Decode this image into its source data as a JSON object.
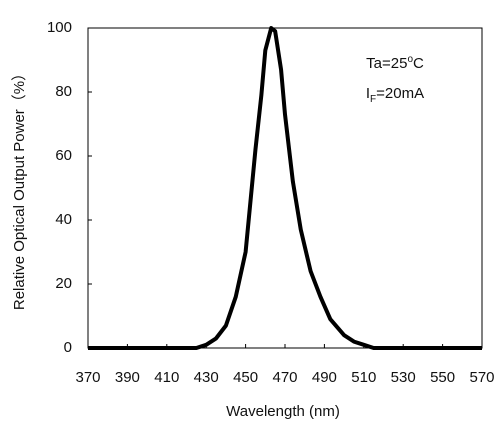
{
  "chart_data": {
    "type": "line",
    "y_label": "Relative Optical Output Power（%）",
    "x_label": "Wavelength  (nm)",
    "annotations": [
      [
        "Ta=25",
        "o",
        "C"
      ],
      [
        "I",
        "F",
        "=20mA"
      ]
    ],
    "x": [
      370,
      420,
      425,
      430,
      435,
      440,
      445,
      450,
      455,
      458,
      460,
      463,
      465,
      468,
      470,
      474,
      478,
      483,
      488,
      493,
      500,
      505,
      510,
      515,
      570
    ],
    "series": [
      {
        "color": "#000000",
        "values": [
          0,
          0,
          0,
          1,
          3,
          7,
          16,
          30,
          62,
          79,
          93,
          100,
          99,
          87,
          73,
          52,
          37,
          24,
          16,
          9,
          4,
          2,
          1,
          0,
          0
        ]
      }
    ],
    "xlim": [
      370,
      570
    ],
    "xticks": [
      370,
      390,
      410,
      430,
      450,
      470,
      490,
      510,
      530,
      550,
      570
    ],
    "ylim": [
      0,
      100
    ],
    "yticks": [
      0,
      20,
      40,
      60,
      80,
      100
    ]
  }
}
